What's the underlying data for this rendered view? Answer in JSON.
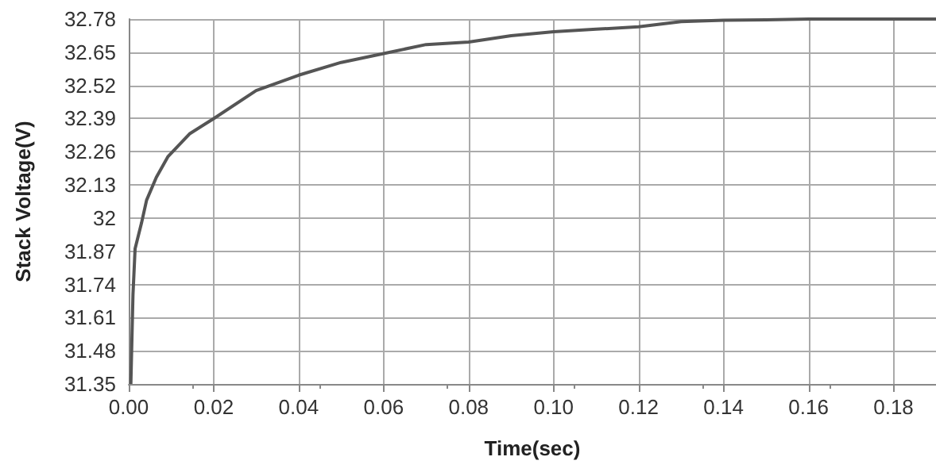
{
  "chart_data": {
    "type": "line",
    "xlabel": "Time(sec)",
    "ylabel": "Stack Voltage(V)",
    "x": [
      0.0005,
      0.001,
      0.0015,
      0.003,
      0.0042,
      0.0065,
      0.0092,
      0.0143,
      0.02,
      0.03,
      0.04,
      0.05,
      0.06,
      0.07,
      0.08,
      0.09,
      0.1,
      0.11,
      0.12,
      0.13,
      0.14,
      0.15,
      0.16,
      0.17,
      0.18,
      0.19
    ],
    "series": [
      {
        "color": "#555555",
        "values": [
          31.35,
          31.7,
          31.88,
          31.98,
          32.07,
          32.16,
          32.24,
          32.33,
          32.39,
          32.5,
          32.56,
          32.61,
          32.645,
          32.68,
          32.69,
          32.715,
          32.73,
          32.74,
          32.75,
          32.77,
          32.775,
          32.777,
          32.78,
          32.78,
          32.78,
          32.78
        ]
      }
    ],
    "xlim": [
      0,
      0.19
    ],
    "xticks": [
      {
        "value": 0,
        "label": "0.00"
      },
      {
        "value": 0.02,
        "label": "0.02"
      },
      {
        "value": 0.04,
        "label": "0.04"
      },
      {
        "value": 0.06,
        "label": "0.06"
      },
      {
        "value": 0.08,
        "label": "0.08"
      },
      {
        "value": 0.1,
        "label": "0.10"
      },
      {
        "value": 0.12,
        "label": "0.12"
      },
      {
        "value": 0.14,
        "label": "0.14"
      },
      {
        "value": 0.16,
        "label": "0.16"
      },
      {
        "value": 0.18,
        "label": "0.18"
      }
    ],
    "ylim": [
      31.35,
      32.78
    ],
    "yticks": [
      31.35,
      31.48,
      31.61,
      31.74,
      31.87,
      32,
      32.13,
      32.26,
      32.39,
      32.52,
      32.65,
      32.78
    ],
    "grid": true,
    "marker": "none",
    "line_style": "solid"
  }
}
